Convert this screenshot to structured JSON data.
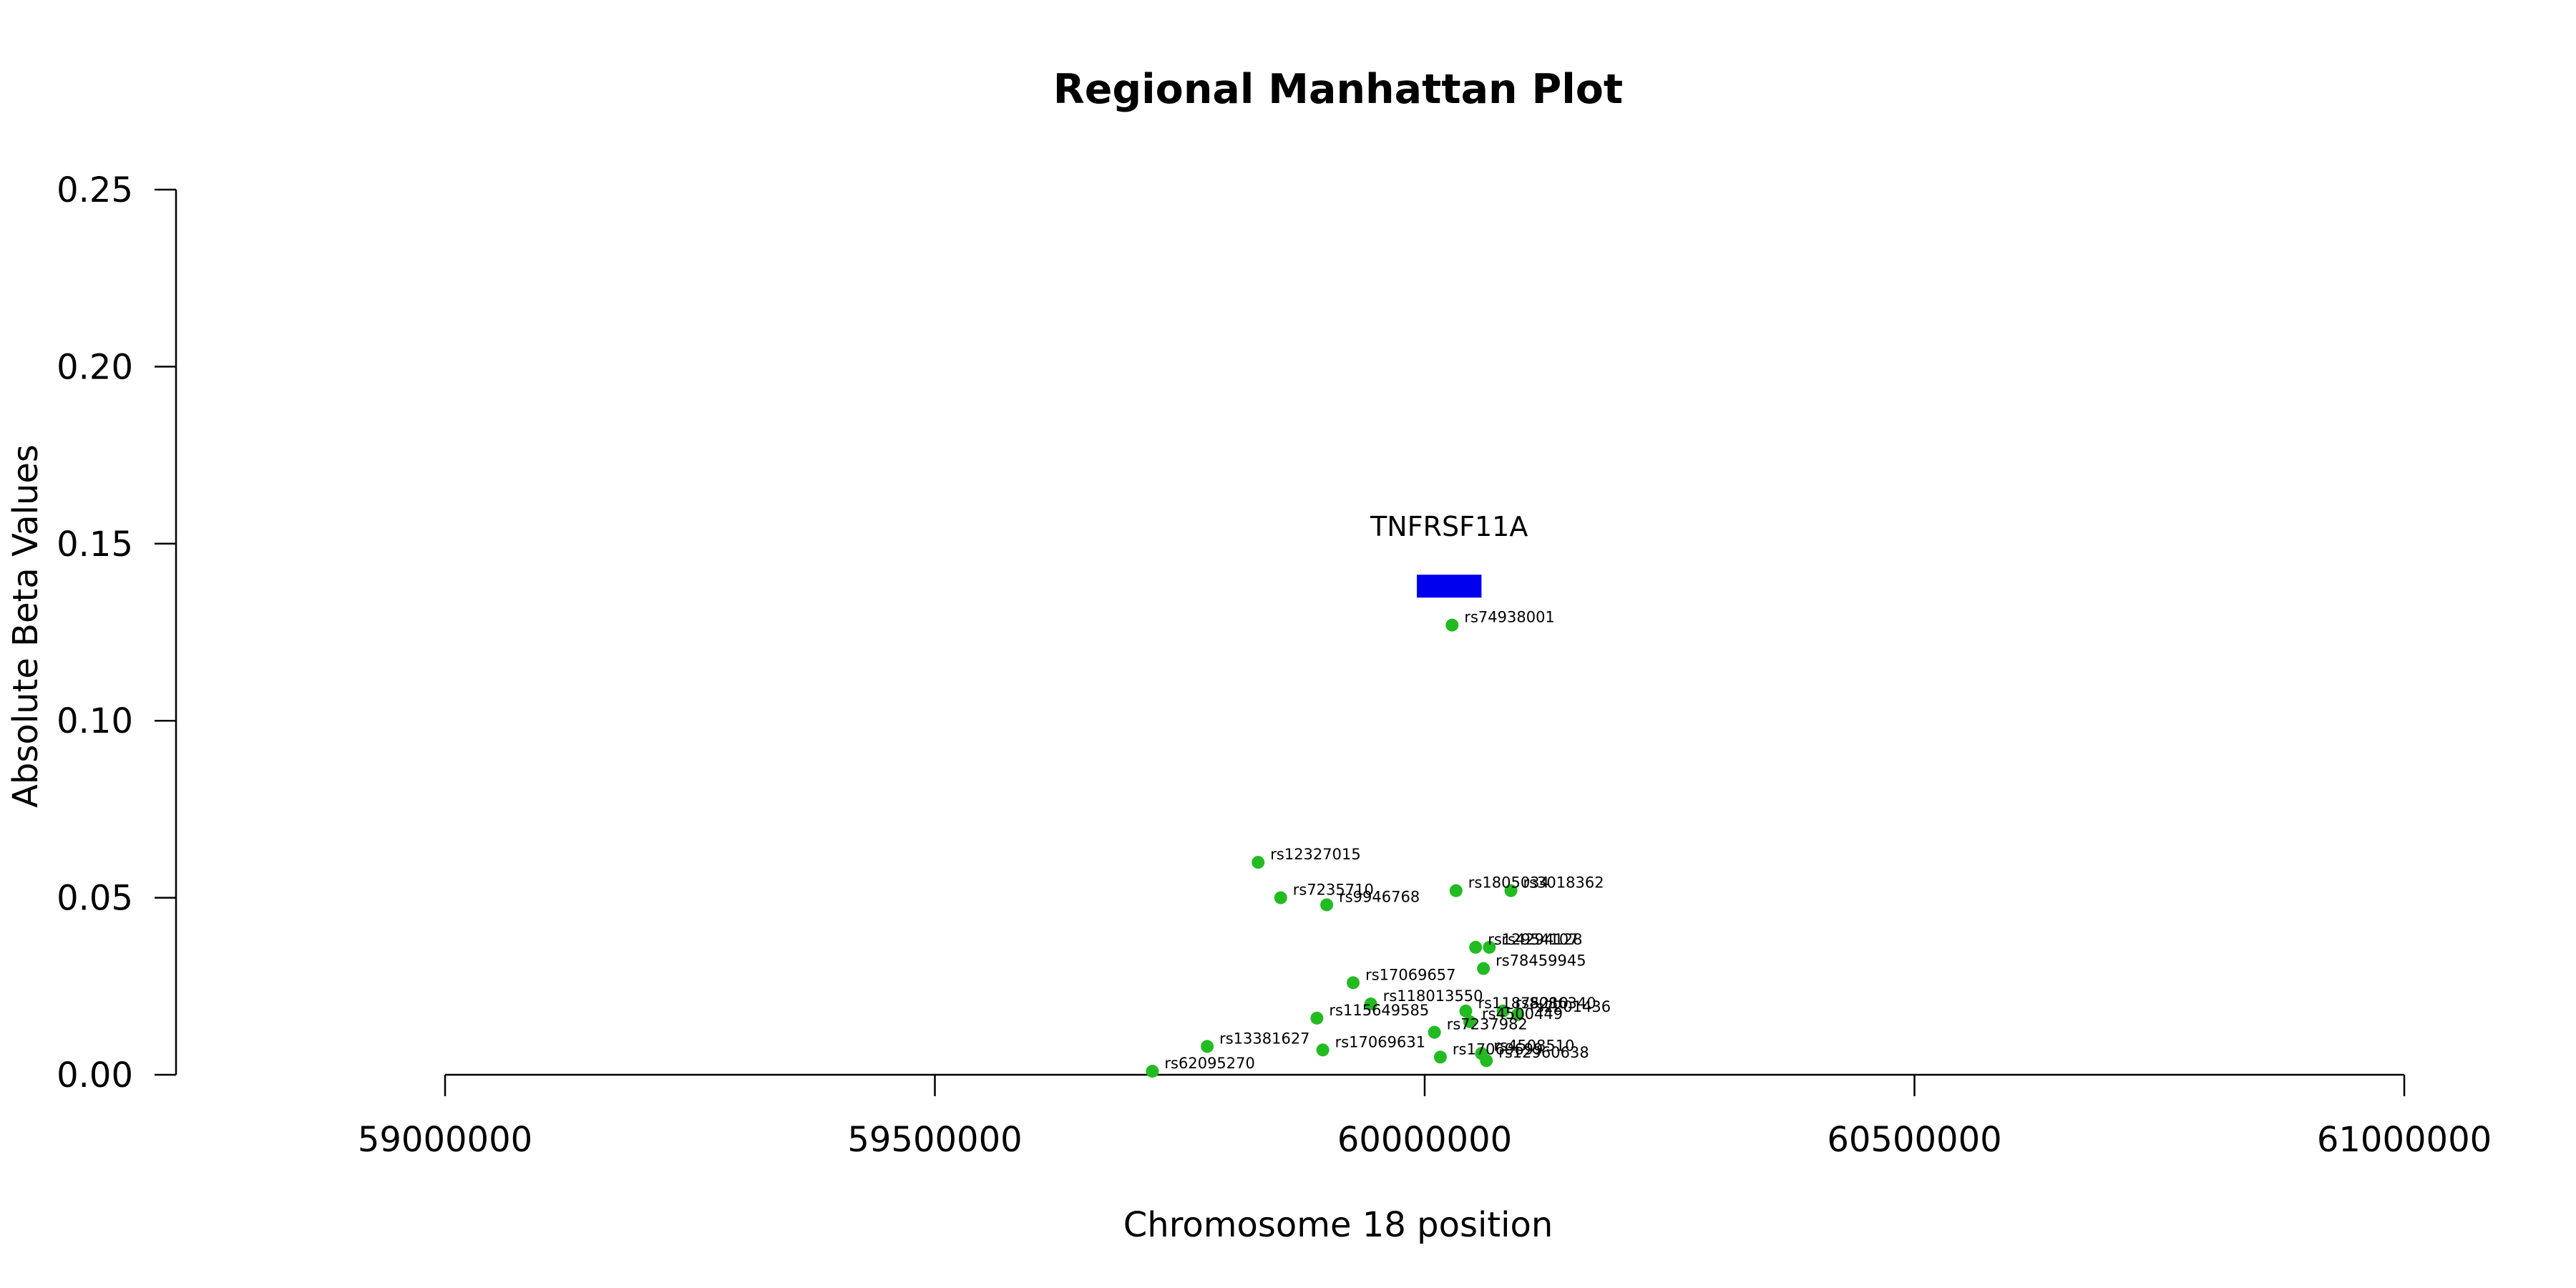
{
  "colors": {
    "point": "#22bb22",
    "gene": "#0000ee",
    "axis": "#000000"
  },
  "chart_data": {
    "type": "scatter",
    "title": "Regional Manhattan Plot",
    "xlabel": "Chromosome 18 position",
    "ylabel": "Absolute Beta Values",
    "xlim": [
      59000000,
      61000000
    ],
    "ylim": [
      0,
      0.25
    ],
    "xticks": [
      59000000,
      59500000,
      60000000,
      60500000,
      61000000
    ],
    "xtick_labels": [
      "59000000",
      "59500000",
      "60000000",
      "60500000",
      "61000000"
    ],
    "yticks": [
      0,
      0.05,
      0.1,
      0.15,
      0.2,
      0.25
    ],
    "ytick_labels": [
      "0.00",
      "0.05",
      "0.10",
      "0.15",
      "0.20",
      "0.25"
    ],
    "grid": false,
    "gene": {
      "name": "TNFRSF11A",
      "start": 59992000,
      "end": 60058000,
      "y": 0.138
    },
    "points": [
      {
        "snp": "rs74938001",
        "x": 60028000,
        "y": 0.127
      },
      {
        "snp": "rs12327015",
        "x": 59830000,
        "y": 0.06
      },
      {
        "snp": "rs7235710",
        "x": 59853000,
        "y": 0.05
      },
      {
        "snp": "rs9946768",
        "x": 59900000,
        "y": 0.048
      },
      {
        "snp": "rs1805034",
        "x": 60032000,
        "y": 0.052
      },
      {
        "snp": "rs3018362",
        "x": 60088000,
        "y": 0.052
      },
      {
        "snp": "rs12954107",
        "x": 60052000,
        "y": 0.036
      },
      {
        "snp": "rs4294128",
        "x": 60066000,
        "y": 0.036
      },
      {
        "snp": "rs78459945",
        "x": 60060000,
        "y": 0.03
      },
      {
        "snp": "rs17069657",
        "x": 59927000,
        "y": 0.026
      },
      {
        "snp": "rs118013550",
        "x": 59945000,
        "y": 0.02
      },
      {
        "snp": "rs11875210",
        "x": 60042000,
        "y": 0.018
      },
      {
        "snp": "rs8086340",
        "x": 60080000,
        "y": 0.018
      },
      {
        "snp": "rs2201436",
        "x": 60095000,
        "y": 0.017
      },
      {
        "snp": "rs4500449",
        "x": 60046000,
        "y": 0.015
      },
      {
        "snp": "rs115649585",
        "x": 59890000,
        "y": 0.016
      },
      {
        "snp": "rs7237982",
        "x": 60010000,
        "y": 0.012
      },
      {
        "snp": "rs13381627",
        "x": 59778000,
        "y": 0.008
      },
      {
        "snp": "rs17069631",
        "x": 59896000,
        "y": 0.007
      },
      {
        "snp": "rs17069699",
        "x": 60016000,
        "y": 0.005
      },
      {
        "snp": "rs4508510",
        "x": 60058000,
        "y": 0.006
      },
      {
        "snp": "rs12960638",
        "x": 60063000,
        "y": 0.004
      },
      {
        "snp": "rs62095270",
        "x": 59722000,
        "y": 0.001
      }
    ]
  }
}
